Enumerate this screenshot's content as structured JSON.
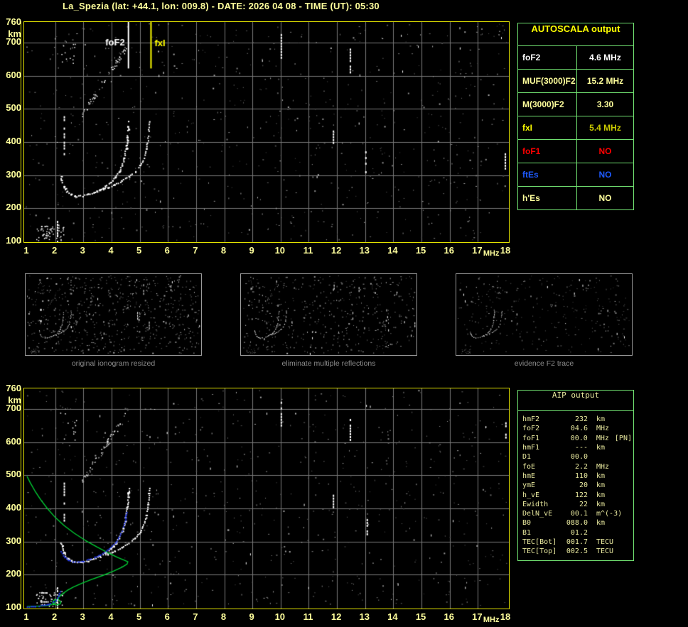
{
  "title": "La_Spezia (lat: +44.1, lon: 009.8) - DATE: 2026 04 08 - TIME (UT): 05:30",
  "colors": {
    "background": "#000000",
    "axis_text": "#ffff9c",
    "plot_border": "#e2e200",
    "grid": "#787878",
    "table_border": "#70e070",
    "white": "#ffffff",
    "red": "#ff0000",
    "blue": "#1e5aff",
    "bright_yellow": "#ffff00",
    "dim_yellow": "#c8c800",
    "pale_yellow": "#ffff9c",
    "aip_text": "#e8e89e",
    "caption_gray": "#8c8c8c",
    "profile_green": "#00cc33",
    "restored_blue": "#2438e6"
  },
  "autoscala": {
    "header": "AUTOSCALA output",
    "rows": [
      {
        "label": "foF2",
        "value": "4.6 MHz",
        "label_color": "#ffffff",
        "value_color": "#ffffff"
      },
      {
        "label": "MUF(3000)F2",
        "value": "15.2 MHz",
        "label_color": "#ffff9c",
        "value_color": "#ffff9c"
      },
      {
        "label": "M(3000)F2",
        "value": "3.30",
        "label_color": "#ffff9c",
        "value_color": "#ffff9c"
      },
      {
        "label": "fxI",
        "value": "5.4 MHz",
        "label_color": "#ffff00",
        "value_color": "#c8c800"
      },
      {
        "label": "foF1",
        "value": "NO",
        "label_color": "#ff0000",
        "value_color": "#ff0000"
      },
      {
        "label": "ftEs",
        "value": "NO",
        "label_color": "#1e5aff",
        "value_color": "#1e5aff"
      },
      {
        "label": "h'Es",
        "value": "NO",
        "label_color": "#ffff9c",
        "value_color": "#ffff9c"
      }
    ]
  },
  "aip": {
    "header": "AIP output",
    "rows": [
      {
        "name": "hmF2",
        "value": "232",
        "unit": "km",
        "note": ""
      },
      {
        "name": "foF2",
        "value": "04.6",
        "unit": "MHz",
        "note": ""
      },
      {
        "name": "foF1",
        "value": "00.0",
        "unit": "MHz",
        "note": "[PN]"
      },
      {
        "name": "hmF1",
        "value": "---",
        "unit": "km",
        "note": ""
      },
      {
        "name": "D1",
        "value": "00.0",
        "unit": "",
        "note": ""
      },
      {
        "name": "foE",
        "value": "2.2",
        "unit": "MHz",
        "note": ""
      },
      {
        "name": "hmE",
        "value": "110",
        "unit": "km",
        "note": ""
      },
      {
        "name": "ymE",
        "value": "20",
        "unit": "km",
        "note": ""
      },
      {
        "name": "h_vE",
        "value": "122",
        "unit": "km",
        "note": ""
      },
      {
        "name": "Ewidth",
        "value": "22",
        "unit": "km",
        "note": ""
      },
      {
        "name": "DelN_vE",
        "value": "00.1",
        "unit": "m^(-3)",
        "note": ""
      },
      {
        "name": "B0",
        "value": "088.0",
        "unit": "km",
        "note": ""
      },
      {
        "name": "B1",
        "value": "01.2",
        "unit": "",
        "note": ""
      },
      {
        "name": "TEC[Bot]",
        "value": "001.7",
        "unit": "TECU",
        "note": ""
      },
      {
        "name": "TEC[Top]",
        "value": "002.5",
        "unit": "TECU",
        "note": ""
      }
    ]
  },
  "thumbnails": [
    {
      "caption": "original ionogram resized"
    },
    {
      "caption": "eliminate multiple reflections"
    },
    {
      "caption": "evidence F2 trace"
    }
  ],
  "chart_data": {
    "type": "scatter",
    "title": "Ionogram La_Spezia 2026-04-08 05:30 UT",
    "xlabel": "MHz",
    "ylabel": "km",
    "xlim": [
      1,
      18
    ],
    "ylim": [
      100,
      760
    ],
    "x_ticks": [
      1,
      2,
      3,
      4,
      5,
      6,
      7,
      8,
      9,
      10,
      11,
      12,
      13,
      14,
      15,
      16,
      17,
      18
    ],
    "y_ticks": [
      760,
      700,
      600,
      500,
      400,
      300,
      200,
      100
    ],
    "x_unit": "MHz",
    "y_unit": "km",
    "grid": {
      "x_step_mhz": 1,
      "y_step_km": 100
    },
    "scaled_markers": {
      "foF2_label": "foF2",
      "fxI_label": "fxI",
      "foF2_MHz": 4.6,
      "fxI_MHz": 5.4,
      "line_bottom_km": 622
    },
    "traces": {
      "f2_o_mode": [
        [
          2.18,
          298
        ],
        [
          2.28,
          268
        ],
        [
          2.4,
          252
        ],
        [
          2.55,
          243
        ],
        [
          2.75,
          238
        ],
        [
          2.95,
          239
        ],
        [
          3.15,
          243
        ],
        [
          3.35,
          249
        ],
        [
          3.55,
          257
        ],
        [
          3.75,
          267
        ],
        [
          3.95,
          280
        ],
        [
          4.12,
          295
        ],
        [
          4.25,
          312
        ],
        [
          4.35,
          331
        ],
        [
          4.44,
          355
        ],
        [
          4.5,
          382
        ],
        [
          4.55,
          415
        ],
        [
          4.58,
          448
        ],
        [
          4.59,
          462
        ]
      ],
      "f2_x_mode": [
        [
          3.6,
          256
        ],
        [
          3.85,
          263
        ],
        [
          4.1,
          273
        ],
        [
          4.35,
          284
        ],
        [
          4.6,
          297
        ],
        [
          4.82,
          312
        ],
        [
          5.0,
          330
        ],
        [
          5.13,
          352
        ],
        [
          5.22,
          380
        ],
        [
          5.28,
          413
        ],
        [
          5.31,
          447
        ],
        [
          5.32,
          462
        ]
      ],
      "e_region_cluster": {
        "f_range": [
          1.3,
          2.3
        ],
        "h_center_km": 128,
        "h_spread_km": 30,
        "streak_f": 2.06,
        "streak_h": [
          100,
          162
        ],
        "dash_rows": [
          [
            1.42,
            1.74,
            120
          ],
          [
            1.5,
            1.7,
            147
          ]
        ]
      },
      "f_min_streak": {
        "f": 2.3,
        "h": [
          362,
          478
        ]
      },
      "second_hop_band": {
        "from": [
          2.95,
          482
        ],
        "to": [
          4.52,
          688
        ],
        "spread_km": 14
      },
      "high_echo_cluster": {
        "f_range": [
          2.15,
          2.75
        ],
        "h_range": [
          605,
          700
        ]
      },
      "interference_streaks_top": [
        [
          10.0,
          648,
          726
        ],
        [
          12.45,
          606,
          682
        ],
        [
          11.85,
          398,
          452
        ],
        [
          13.0,
          304,
          372
        ],
        [
          17.95,
          323,
          366
        ]
      ],
      "interference_streaks_bottom": [
        [
          10.0,
          648,
          722
        ],
        [
          12.45,
          597,
          670
        ],
        [
          11.85,
          402,
          450
        ],
        [
          13.05,
          299,
          368
        ],
        [
          17.97,
          613,
          660
        ]
      ],
      "electron_density_profile": [
        [
          1.0,
          497
        ],
        [
          1.12,
          477
        ],
        [
          1.28,
          453
        ],
        [
          1.48,
          427
        ],
        [
          1.72,
          400
        ],
        [
          2.0,
          373
        ],
        [
          2.32,
          348
        ],
        [
          2.68,
          325
        ],
        [
          3.08,
          303
        ],
        [
          3.5,
          283
        ],
        [
          3.9,
          265
        ],
        [
          4.22,
          252
        ],
        [
          4.45,
          244
        ],
        [
          4.58,
          239
        ],
        [
          4.55,
          232
        ],
        [
          4.38,
          223
        ],
        [
          4.08,
          211
        ],
        [
          3.7,
          198
        ],
        [
          3.3,
          186
        ],
        [
          2.95,
          174
        ],
        [
          2.65,
          163
        ],
        [
          2.42,
          152
        ],
        [
          2.26,
          142
        ],
        [
          2.15,
          134
        ],
        [
          2.1,
          128
        ],
        [
          2.14,
          122
        ],
        [
          2.2,
          117
        ],
        [
          2.18,
          112
        ],
        [
          2.08,
          109
        ],
        [
          1.97,
          110
        ],
        [
          1.91,
          115
        ],
        [
          1.93,
          121
        ],
        [
          2.0,
          125
        ],
        [
          2.05,
          124
        ],
        [
          2.02,
          117
        ],
        [
          1.93,
          111
        ],
        [
          1.8,
          108
        ],
        [
          1.6,
          106
        ],
        [
          1.35,
          105
        ],
        [
          1.0,
          104
        ]
      ],
      "restored_trace_f": [
        [
          2.2,
          272
        ],
        [
          2.32,
          254
        ],
        [
          2.45,
          245
        ],
        [
          2.6,
          240
        ],
        [
          2.78,
          239
        ],
        [
          2.98,
          242
        ],
        [
          3.18,
          247
        ],
        [
          3.38,
          254
        ],
        [
          3.58,
          262
        ],
        [
          3.78,
          272
        ],
        [
          3.96,
          284
        ],
        [
          4.12,
          298
        ],
        [
          4.25,
          314
        ],
        [
          4.35,
          332
        ],
        [
          4.43,
          352
        ],
        [
          4.48,
          372
        ],
        [
          4.51,
          390
        ]
      ],
      "restored_trace_e": [
        [
          1.0,
          105
        ],
        [
          1.14,
          105
        ],
        [
          1.28,
          106
        ],
        [
          1.42,
          107
        ],
        [
          1.56,
          109
        ],
        [
          1.7,
          112
        ],
        [
          1.82,
          115
        ],
        [
          1.92,
          119
        ],
        [
          2.0,
          124
        ],
        [
          2.06,
          130
        ],
        [
          2.1,
          137
        ],
        [
          2.13,
          144
        ],
        [
          2.16,
          151
        ]
      ]
    },
    "noise": {
      "top": {
        "gray": 680,
        "white": 70,
        "seed": 11
      },
      "bottom": {
        "gray": 640,
        "white": 64,
        "seed": 29
      },
      "thumb1": {
        "gray": 560,
        "white": 66,
        "seed": 41
      },
      "thumb2": {
        "gray": 430,
        "white": 48,
        "seed": 57
      },
      "thumb3": {
        "gray": 280,
        "white": 30,
        "seed": 73
      }
    }
  }
}
